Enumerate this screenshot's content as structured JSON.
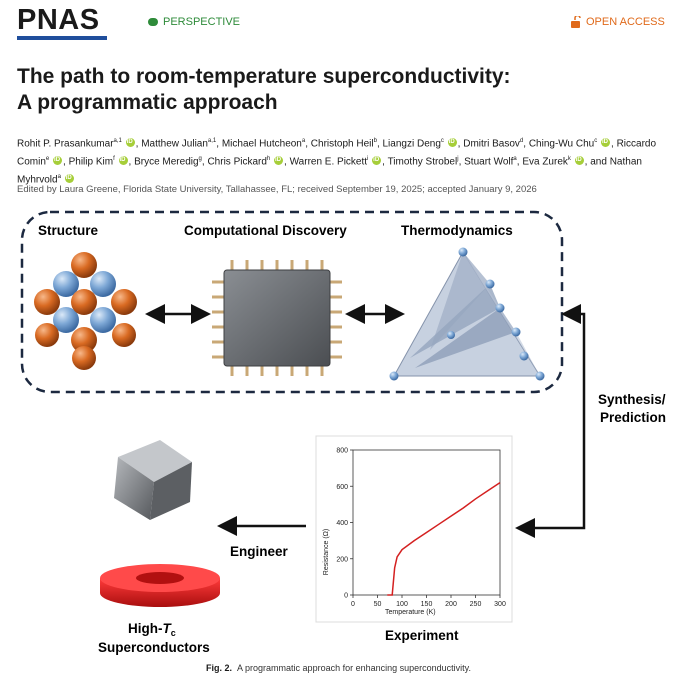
{
  "header": {
    "journal": "PNAS",
    "article_type": "PERSPECTIVE",
    "access": "OPEN ACCESS"
  },
  "title_line1": "The path to room-temperature superconductivity:",
  "title_line2": "A programmatic approach",
  "authors": [
    {
      "name": "Rohit P. Prasankumar",
      "sup": "a,1",
      "orcid": true
    },
    {
      "name": "Matthew Julian",
      "sup": "a,1",
      "orcid": false
    },
    {
      "name": "Michael Hutcheon",
      "sup": "a",
      "orcid": false
    },
    {
      "name": "Christoph Heil",
      "sup": "b",
      "orcid": false
    },
    {
      "name": "Liangzi Deng",
      "sup": "c",
      "orcid": true
    },
    {
      "name": "Dmitri Basov",
      "sup": "d",
      "orcid": false
    },
    {
      "name": "Ching-Wu Chu",
      "sup": "c",
      "orcid": true
    },
    {
      "name": "Riccardo Comin",
      "sup": "e",
      "orcid": true
    },
    {
      "name": "Philip Kim",
      "sup": "f",
      "orcid": true
    },
    {
      "name": "Bryce Meredig",
      "sup": "g",
      "orcid": false
    },
    {
      "name": "Chris Pickard",
      "sup": "h",
      "orcid": true
    },
    {
      "name": "Warren E. Pickett",
      "sup": "i",
      "orcid": true
    },
    {
      "name": "Timothy Strobel",
      "sup": "j",
      "orcid": false
    },
    {
      "name": "Stuart Wolf",
      "sup": "a",
      "orcid": false
    },
    {
      "name": "Eva Zurek",
      "sup": "k",
      "orcid": true
    },
    {
      "name": "and Nathan Myhrvold",
      "sup": "a",
      "orcid": true
    }
  ],
  "edited": "Edited by Laura Greene, Florida State University, Tallahassee, FL; received September 19, 2025; accepted January 9, 2026",
  "figure": {
    "label_structure": "Structure",
    "label_computational": "Computational Discovery",
    "label_thermo": "Thermodynamics",
    "label_synthesis_1": "Synthesis/",
    "label_synthesis_2": "Prediction",
    "label_engineer": "Engineer",
    "label_experiment": "Experiment",
    "label_hightc_prefix": "High-",
    "label_hightc_T": "T",
    "label_hightc_sub": "c",
    "label_superconductors": "Superconductors"
  },
  "chart_data": {
    "type": "line",
    "x": [
      70,
      80,
      85,
      90,
      100,
      125,
      150,
      175,
      200,
      225,
      250,
      275,
      300
    ],
    "y": [
      0,
      0,
      150,
      210,
      250,
      300,
      345,
      390,
      435,
      480,
      530,
      575,
      620
    ],
    "xlabel": "Temperature (K)",
    "ylabel": "Resistance (Ω)",
    "xlim": [
      0,
      300
    ],
    "ylim": [
      0,
      800
    ],
    "xticks": [
      "0",
      "50",
      "100",
      "150",
      "200",
      "250",
      "300"
    ],
    "yticks": [
      "0",
      "200",
      "400",
      "600",
      "800"
    ],
    "line_color": "#d42020"
  },
  "caption_label": "Fig. 2.",
  "caption_text": "A programmatic approach for enhancing superconductivity."
}
